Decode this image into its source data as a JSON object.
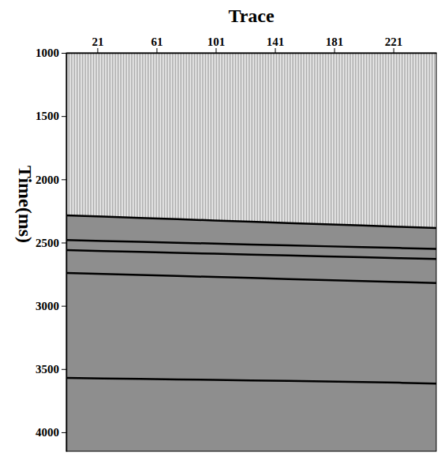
{
  "chart_data": {
    "type": "line",
    "title": "Trace",
    "y_label": "Time(ms)",
    "x": [
      0,
      25,
      50,
      75,
      100,
      125,
      150,
      175,
      200,
      225,
      250
    ],
    "series": [
      {
        "type": "area",
        "color": "#8e8e8e",
        "values": [
          2285,
          2295,
          2305,
          2315,
          2325,
          2335,
          2345,
          2355,
          2365,
          2375,
          2385
        ]
      },
      {
        "color": "#000000",
        "values": [
          2285,
          2295,
          2305,
          2315,
          2325,
          2335,
          2345,
          2355,
          2365,
          2375,
          2385
        ]
      },
      {
        "color": "#000000",
        "values": [
          2480,
          2487,
          2494,
          2501,
          2508,
          2515,
          2522,
          2529,
          2536,
          2543,
          2550
        ]
      },
      {
        "color": "#000000",
        "values": [
          2560,
          2567,
          2574,
          2581,
          2588,
          2595,
          2602,
          2609,
          2616,
          2623,
          2630
        ]
      },
      {
        "color": "#000000",
        "values": [
          2740,
          2748,
          2756,
          2764,
          2772,
          2780,
          2788,
          2796,
          2804,
          2812,
          2820
        ]
      },
      {
        "color": "#000000",
        "values": [
          3570,
          3575,
          3578,
          3582,
          3586,
          3590,
          3594,
          3598,
          3603,
          3608,
          3615
        ]
      }
    ],
    "xlim": [
      0,
      250
    ],
    "ylim": [
      1000,
      4150
    ],
    "xticks": [
      21,
      61,
      101,
      141,
      181,
      221
    ],
    "yticks": [
      1000,
      1500,
      2000,
      2500,
      3000,
      3500,
      4000
    ],
    "grid": false
  }
}
